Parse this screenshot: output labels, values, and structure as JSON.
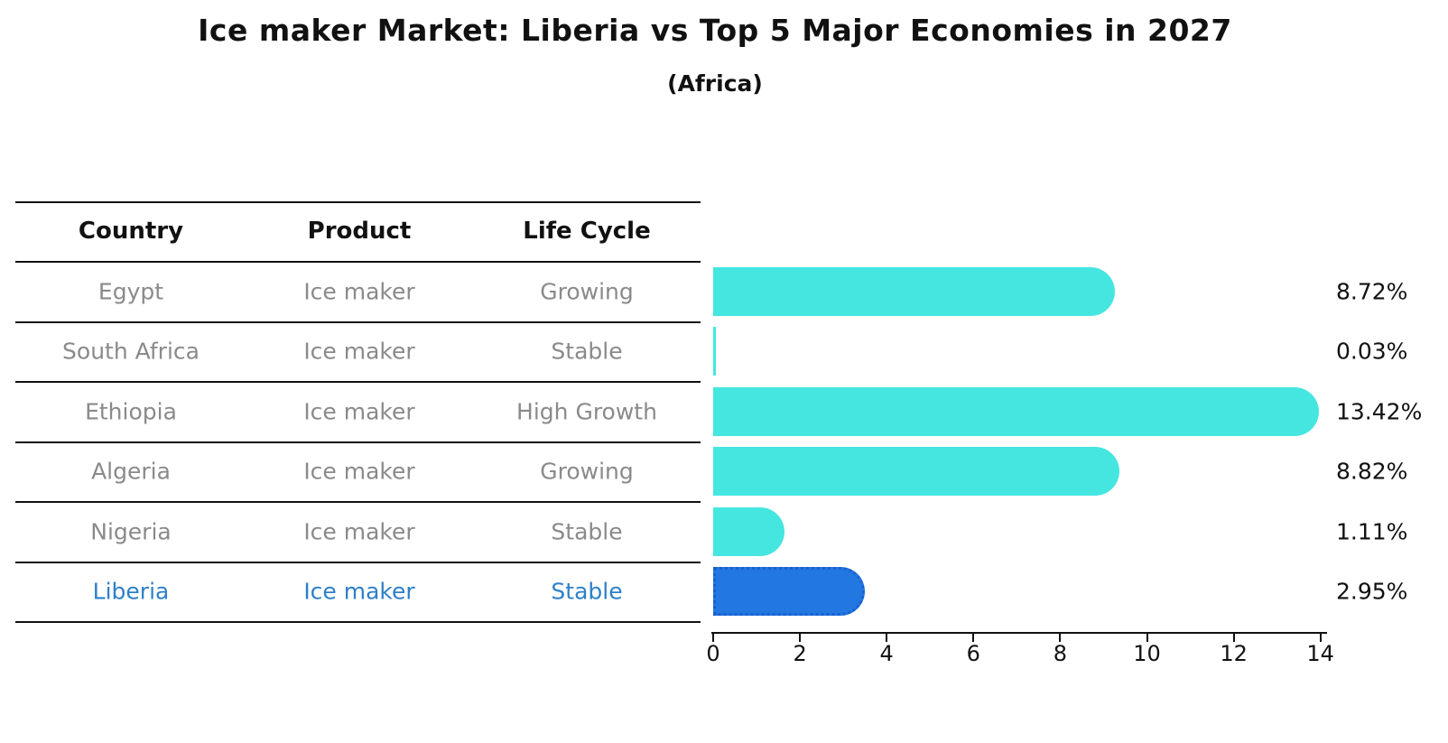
{
  "title": "Ice maker Market: Liberia vs Top 5 Major Economies in 2027",
  "subtitle": "(Africa)",
  "table": {
    "headers": [
      "Country",
      "Product",
      "Life Cycle"
    ],
    "rows": [
      {
        "country": "Egypt",
        "product": "Ice maker",
        "life_cycle": "Growing",
        "highlight": false
      },
      {
        "country": "South Africa",
        "product": "Ice maker",
        "life_cycle": "Stable",
        "highlight": false
      },
      {
        "country": "Ethiopia",
        "product": "Ice maker",
        "life_cycle": "High Growth",
        "highlight": false
      },
      {
        "country": "Algeria",
        "product": "Ice maker",
        "life_cycle": "Growing",
        "highlight": false
      },
      {
        "country": "Nigeria",
        "product": "Ice maker",
        "life_cycle": "Stable",
        "highlight": false
      },
      {
        "country": "Liberia",
        "product": "Ice maker",
        "life_cycle": "Stable",
        "highlight": true
      }
    ]
  },
  "chart_data": {
    "type": "bar",
    "orientation": "horizontal",
    "title": "Ice maker Market: Liberia vs Top 5 Major Economies in 2027",
    "subtitle": "(Africa)",
    "categories": [
      "Egypt",
      "South Africa",
      "Ethiopia",
      "Algeria",
      "Nigeria",
      "Liberia"
    ],
    "values": [
      8.72,
      0.03,
      13.42,
      8.82,
      1.11,
      2.95
    ],
    "value_labels": [
      "8.72%",
      "0.03%",
      "13.42%",
      "8.82%",
      "1.11%",
      "2.95%"
    ],
    "x_ticks": [
      0,
      2,
      4,
      6,
      8,
      10,
      12,
      14
    ],
    "xlim": [
      0,
      14
    ],
    "xlabel": "",
    "ylabel": "",
    "grid": false,
    "legend": false,
    "bar_color": "#45e6e0",
    "highlight_index": 5,
    "highlight_bar_color": "#2277e0",
    "highlight_bar_border_color": "#1a5fd0",
    "highlight_text_color": "#2e80c8"
  },
  "colors": {
    "bar_cyan": "#45e6e0",
    "bar_blue": "#2277e0",
    "bar_blue_border": "#1a5fd0",
    "highlight_text": "#2e80c8",
    "body_text": "#8a8a8a",
    "axis_text": "#111111"
  }
}
